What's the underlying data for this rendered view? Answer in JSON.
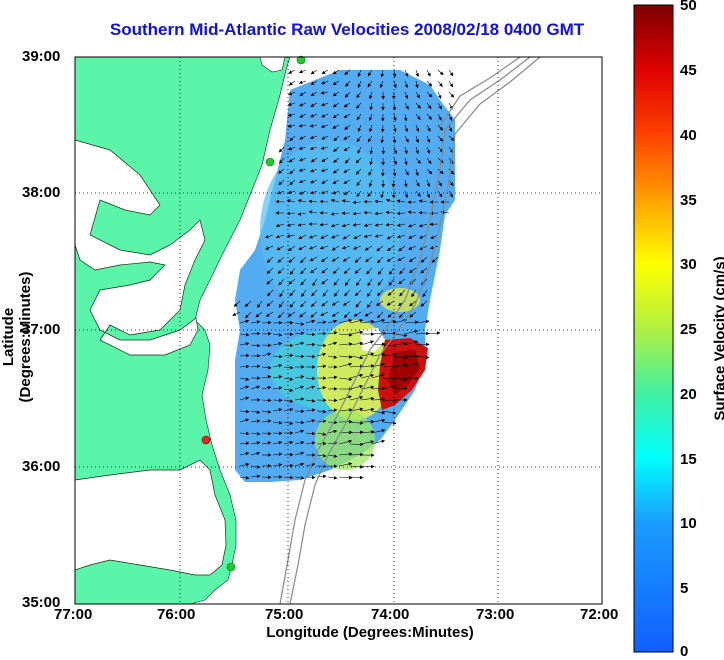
{
  "title": "Southern Mid-Atlantic Raw Velocities 2008/02/18 0400 GMT",
  "map": {
    "xlabel": "Longitude (Degrees:Minutes)",
    "ylabel": "Latitude (Degrees:Minutes)",
    "x_ticks": [
      "77:00",
      "76:00",
      "75:00",
      "74:00",
      "73:00",
      "72:00"
    ],
    "y_ticks": [
      "39:00",
      "38:00",
      "37:00",
      "36:00",
      "35:00"
    ],
    "colors": {
      "land": "#5af5a8",
      "grid": "#000000"
    },
    "stations": [
      {
        "name": "green-station",
        "color": "#22cc22"
      },
      {
        "name": "red-station",
        "color": "#ee2222"
      }
    ]
  },
  "colorbar": {
    "label": "Surface Velocity (cm/s)",
    "ticks": [
      "50",
      "45",
      "40",
      "35",
      "30",
      "25",
      "20",
      "15",
      "10",
      "5",
      "0"
    ],
    "range": [
      0,
      50
    ]
  }
}
